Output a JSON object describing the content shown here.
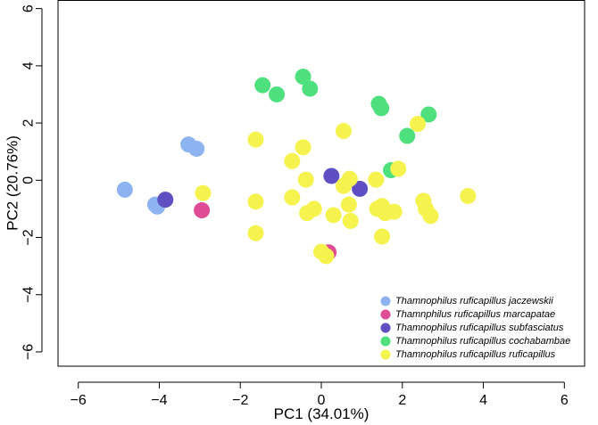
{
  "chart_data": {
    "type": "scatter",
    "xlabel": "PC1 (34.01%)",
    "ylabel": "PC2 (20.76%)",
    "xlim": [
      -6.5,
      6.5
    ],
    "ylim": [
      -6.5,
      6.3
    ],
    "xticks": [
      -6,
      -4,
      -2,
      0,
      2,
      4,
      6
    ],
    "yticks": [
      -6,
      -4,
      -2,
      0,
      2,
      4,
      6
    ],
    "grid": false,
    "legend_position": "bottom-right",
    "series": [
      {
        "name": "Thamnophilus ruficapillus jaczewskii",
        "color": "#8db4f0",
        "points": [
          [
            -4.85,
            -0.33
          ],
          [
            -4.1,
            -0.85
          ],
          [
            -4.05,
            -0.92
          ],
          [
            -3.28,
            1.25
          ],
          [
            -3.08,
            1.1
          ]
        ]
      },
      {
        "name": "Thamnphilus ruficapillus marcapatae",
        "color": "#df4c96",
        "points": [
          [
            -2.95,
            -1.05
          ],
          [
            0.18,
            -2.52
          ]
        ]
      },
      {
        "name": "Thamnophilus ruficapillus subfasciatus",
        "color": "#5e4fc3",
        "points": [
          [
            -3.85,
            -0.68
          ],
          [
            0.25,
            0.15
          ],
          [
            0.95,
            -0.3
          ]
        ]
      },
      {
        "name": "Thamnophilus ruficapillus cochabambae",
        "color": "#4fe07e",
        "points": [
          [
            -1.45,
            3.32
          ],
          [
            -1.1,
            3.0
          ],
          [
            -0.45,
            3.62
          ],
          [
            -0.28,
            3.2
          ],
          [
            1.42,
            2.67
          ],
          [
            1.48,
            2.52
          ],
          [
            2.12,
            1.55
          ],
          [
            2.65,
            2.3
          ],
          [
            1.72,
            0.35
          ]
        ]
      },
      {
        "name": "Thamnophilus ruficapillus ruficapillus",
        "color": "#f6f34f",
        "points": [
          [
            -2.92,
            -0.45
          ],
          [
            -1.62,
            1.42
          ],
          [
            -1.62,
            -0.75
          ],
          [
            -1.62,
            -1.85
          ],
          [
            -0.72,
            0.67
          ],
          [
            -0.72,
            -0.6
          ],
          [
            -0.45,
            1.15
          ],
          [
            -0.38,
            0.02
          ],
          [
            -0.35,
            -1.15
          ],
          [
            -0.18,
            -1.0
          ],
          [
            0.0,
            -2.5
          ],
          [
            0.12,
            -2.65
          ],
          [
            0.3,
            -1.22
          ],
          [
            0.55,
            1.72
          ],
          [
            0.55,
            -0.2
          ],
          [
            0.68,
            -0.85
          ],
          [
            0.72,
            -1.42
          ],
          [
            0.7,
            0.05
          ],
          [
            1.35,
            0.02
          ],
          [
            1.38,
            -1.0
          ],
          [
            1.5,
            -0.9
          ],
          [
            1.58,
            -1.15
          ],
          [
            1.8,
            -1.1
          ],
          [
            1.9,
            0.4
          ],
          [
            1.5,
            -1.97
          ],
          [
            2.38,
            1.97
          ],
          [
            2.52,
            -0.72
          ],
          [
            2.58,
            -1.0
          ],
          [
            2.7,
            -1.25
          ],
          [
            3.62,
            -0.55
          ]
        ]
      }
    ]
  }
}
